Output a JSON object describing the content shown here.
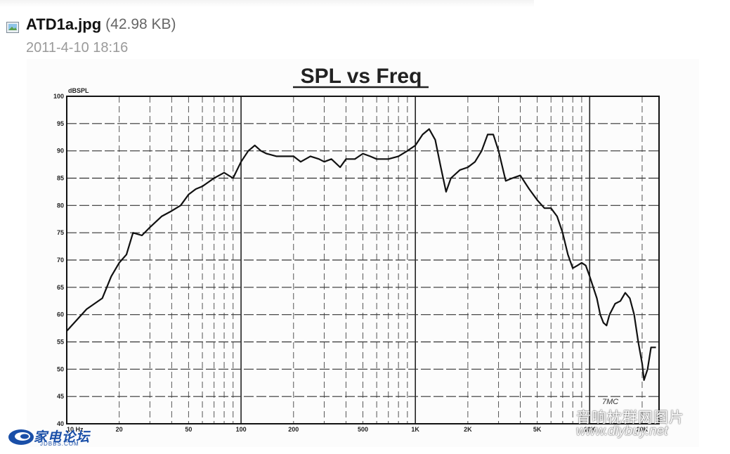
{
  "attachment": {
    "filename": "ATD1a.jpg",
    "size": "(42.98 KB)",
    "date": "2011-4-10 18:16",
    "icon": "image-file-icon"
  },
  "chart_data": {
    "type": "line",
    "title": "SPL vs Freq",
    "ylabel": "dBSPL",
    "xlabel": "",
    "x_scale": "log",
    "xlim": [
      10,
      25000
    ],
    "ylim": [
      40,
      100
    ],
    "y_ticks": [
      40,
      45,
      50,
      55,
      60,
      65,
      70,
      75,
      80,
      85,
      90,
      95,
      100
    ],
    "x_ticks": [
      {
        "value": 10,
        "label": "10 Hz"
      },
      {
        "value": 20,
        "label": "20"
      },
      {
        "value": 50,
        "label": "50"
      },
      {
        "value": 100,
        "label": "100"
      },
      {
        "value": 200,
        "label": "200"
      },
      {
        "value": 500,
        "label": "500"
      },
      {
        "value": 1000,
        "label": "1K"
      },
      {
        "value": 2000,
        "label": "2K"
      },
      {
        "value": 5000,
        "label": "5K"
      },
      {
        "value": 10000,
        "label": "10K"
      },
      {
        "value": 20000,
        "label": "20K"
      }
    ],
    "grid": true,
    "annotation": "7MC",
    "series": [
      {
        "color": "#111111",
        "points": [
          [
            10,
            57
          ],
          [
            13,
            61
          ],
          [
            16,
            63
          ],
          [
            18,
            67
          ],
          [
            20,
            69.5
          ],
          [
            22,
            71
          ],
          [
            24,
            75
          ],
          [
            27,
            74.5
          ],
          [
            30,
            76
          ],
          [
            35,
            78
          ],
          [
            40,
            79
          ],
          [
            45,
            80
          ],
          [
            50,
            82
          ],
          [
            55,
            83
          ],
          [
            60,
            83.5
          ],
          [
            70,
            85
          ],
          [
            80,
            86
          ],
          [
            90,
            85
          ],
          [
            100,
            88
          ],
          [
            110,
            90
          ],
          [
            120,
            91
          ],
          [
            130,
            90
          ],
          [
            140,
            89.5
          ],
          [
            160,
            89
          ],
          [
            180,
            89
          ],
          [
            200,
            89
          ],
          [
            220,
            88
          ],
          [
            250,
            89
          ],
          [
            280,
            88.5
          ],
          [
            300,
            88
          ],
          [
            330,
            88.5
          ],
          [
            370,
            87
          ],
          [
            400,
            88.5
          ],
          [
            450,
            88.5
          ],
          [
            500,
            89.5
          ],
          [
            550,
            89
          ],
          [
            600,
            88.5
          ],
          [
            700,
            88.5
          ],
          [
            800,
            89
          ],
          [
            900,
            90
          ],
          [
            1000,
            91
          ],
          [
            1100,
            93
          ],
          [
            1200,
            94
          ],
          [
            1300,
            92
          ],
          [
            1400,
            87
          ],
          [
            1500,
            82.5
          ],
          [
            1600,
            85
          ],
          [
            1800,
            86.5
          ],
          [
            2000,
            87
          ],
          [
            2200,
            88
          ],
          [
            2400,
            90
          ],
          [
            2600,
            93
          ],
          [
            2800,
            93
          ],
          [
            3000,
            90
          ],
          [
            3300,
            84.5
          ],
          [
            3600,
            85
          ],
          [
            4000,
            85.5
          ],
          [
            4500,
            83
          ],
          [
            5000,
            81
          ],
          [
            5500,
            79.5
          ],
          [
            6000,
            79.5
          ],
          [
            6500,
            78
          ],
          [
            7000,
            75
          ],
          [
            7500,
            71
          ],
          [
            8000,
            68.5
          ],
          [
            8500,
            69
          ],
          [
            9000,
            69.5
          ],
          [
            9500,
            69
          ],
          [
            10000,
            67
          ],
          [
            11000,
            63
          ],
          [
            11500,
            60
          ],
          [
            12000,
            58.5
          ],
          [
            12500,
            58
          ],
          [
            13000,
            60
          ],
          [
            14000,
            62
          ],
          [
            15000,
            62.5
          ],
          [
            16000,
            64
          ],
          [
            17000,
            63
          ],
          [
            18000,
            60
          ],
          [
            19000,
            55
          ],
          [
            20000,
            51
          ],
          [
            20500,
            48
          ],
          [
            21500,
            50
          ],
          [
            22500,
            54
          ],
          [
            24000,
            54
          ]
        ]
      }
    ]
  },
  "watermarks": {
    "left_logo": "家电论坛",
    "left_logo_sub": "JDBBS.COM",
    "right_line1": "音响枕群网图片",
    "right_line2": "www.diybuy.net"
  }
}
